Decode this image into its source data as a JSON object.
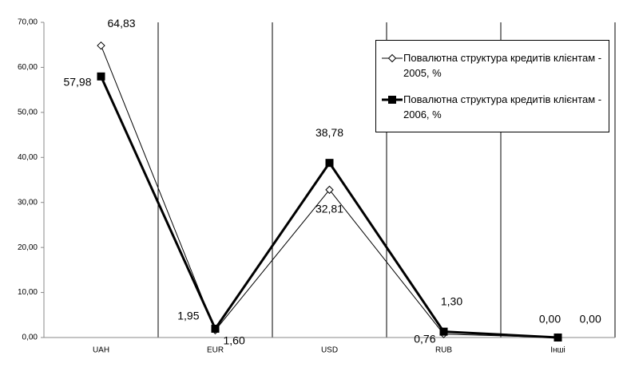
{
  "chart_data": {
    "type": "line",
    "categories": [
      "UAH",
      "EUR",
      "USD",
      "RUB",
      "Інші"
    ],
    "series": [
      {
        "name": "Повалютна структура кредитів клієнтам - 2005, %",
        "color": "#000000",
        "marker": "diamond-open",
        "values": [
          64.83,
          1.6,
          32.81,
          0.76,
          0.0
        ],
        "value_labels": [
          "64,83",
          "1,60",
          "32,81",
          "0,76",
          "0,00"
        ]
      },
      {
        "name": "Повалютна структура кредитів клієнтам - 2006, %",
        "color": "#000000",
        "marker": "square-filled",
        "values": [
          57.98,
          1.95,
          38.78,
          1.3,
          0.0
        ],
        "value_labels": [
          "57,98",
          "1,95",
          "38,78",
          "1,30",
          "0,00"
        ]
      }
    ],
    "ylim": [
      0,
      70
    ],
    "yticks": [
      {
        "value": 0,
        "label": "0,00"
      },
      {
        "value": 10,
        "label": "10,00"
      },
      {
        "value": 20,
        "label": "20,00"
      },
      {
        "value": 30,
        "label": "30,00"
      },
      {
        "value": 40,
        "label": "40,00"
      },
      {
        "value": 50,
        "label": "50,00"
      },
      {
        "value": 60,
        "label": "60,00"
      },
      {
        "value": 70,
        "label": "70,00"
      }
    ]
  }
}
